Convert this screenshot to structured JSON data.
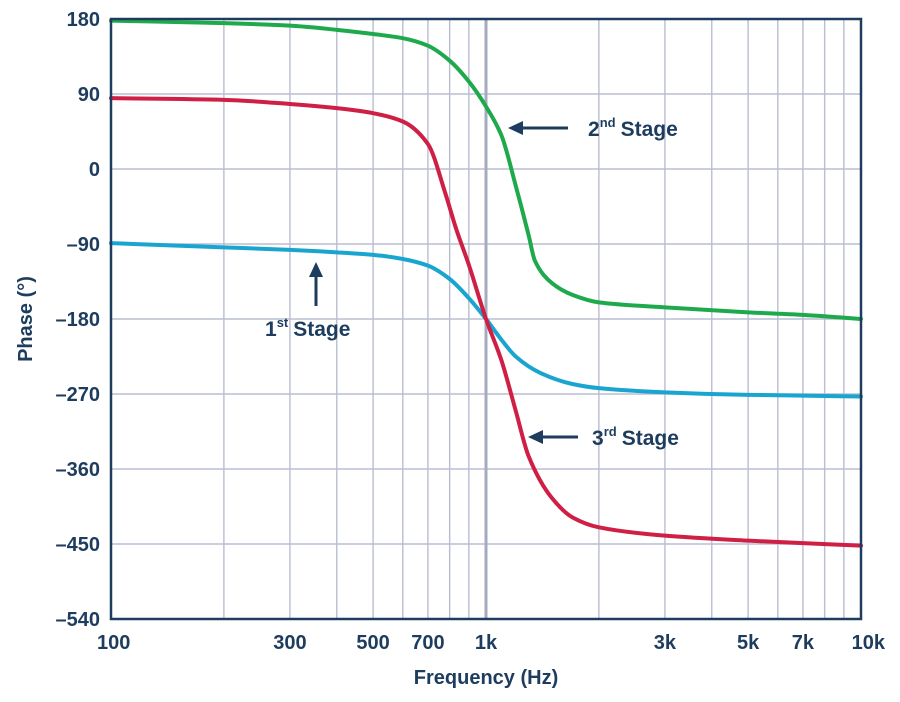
{
  "chart_data": {
    "type": "line",
    "title": "",
    "xlabel": "Frequency (Hz)",
    "ylabel": "Phase (°)",
    "x_scale": "log",
    "xlim": [
      100,
      10000
    ],
    "ylim": [
      -540,
      180
    ],
    "x_ticks": [
      100,
      300,
      500,
      700,
      1000,
      3000,
      5000,
      7000,
      10000
    ],
    "x_tick_labels": [
      "100",
      "300",
      "500",
      "700",
      "1k",
      "3k",
      "5k",
      "7k",
      "10k"
    ],
    "y_ticks": [
      180,
      90,
      0,
      -90,
      -180,
      -270,
      -360,
      -450,
      -540
    ],
    "y_tick_labels": [
      "180",
      "90",
      "0",
      "–90",
      "–180",
      "–270",
      "–360",
      "–450",
      "–540"
    ],
    "grid": true,
    "series": [
      {
        "name": "1st Stage",
        "color": "#1aa5d0",
        "points": [
          [
            100,
            -89
          ],
          [
            200,
            -94
          ],
          [
            300,
            -97
          ],
          [
            400,
            -100
          ],
          [
            500,
            -103
          ],
          [
            600,
            -108
          ],
          [
            700,
            -116
          ],
          [
            800,
            -132
          ],
          [
            900,
            -155
          ],
          [
            1000,
            -180
          ],
          [
            1100,
            -205
          ],
          [
            1200,
            -225
          ],
          [
            1400,
            -245
          ],
          [
            1700,
            -258
          ],
          [
            2000,
            -263
          ],
          [
            3000,
            -268
          ],
          [
            5000,
            -271
          ],
          [
            7000,
            -272
          ],
          [
            10000,
            -273
          ]
        ]
      },
      {
        "name": "2nd Stage",
        "color": "#1eaa4c",
        "points": [
          [
            100,
            178
          ],
          [
            200,
            175
          ],
          [
            300,
            172
          ],
          [
            400,
            167
          ],
          [
            500,
            162
          ],
          [
            600,
            157
          ],
          [
            700,
            148
          ],
          [
            800,
            130
          ],
          [
            900,
            105
          ],
          [
            1000,
            75
          ],
          [
            1100,
            40
          ],
          [
            1200,
            -20
          ],
          [
            1300,
            -80
          ],
          [
            1350,
            -110
          ],
          [
            1500,
            -137
          ],
          [
            1700,
            -151
          ],
          [
            2000,
            -160
          ],
          [
            3000,
            -166
          ],
          [
            5000,
            -172
          ],
          [
            7000,
            -175
          ],
          [
            10000,
            -180
          ]
        ]
      },
      {
        "name": "3rd Stage",
        "color": "#cf1f45",
        "points": [
          [
            100,
            85
          ],
          [
            200,
            83
          ],
          [
            300,
            78
          ],
          [
            400,
            73
          ],
          [
            500,
            67
          ],
          [
            600,
            57
          ],
          [
            700,
            30
          ],
          [
            780,
            -30
          ],
          [
            830,
            -70
          ],
          [
            900,
            -115
          ],
          [
            1000,
            -180
          ],
          [
            1100,
            -230
          ],
          [
            1200,
            -290
          ],
          [
            1300,
            -345
          ],
          [
            1500,
            -395
          ],
          [
            1700,
            -418
          ],
          [
            2000,
            -430
          ],
          [
            3000,
            -440
          ],
          [
            5000,
            -446
          ],
          [
            7000,
            -449
          ],
          [
            10000,
            -452
          ]
        ]
      }
    ],
    "annotations": [
      {
        "num": "1",
        "sup": "st",
        "text": "Stage"
      },
      {
        "num": "2",
        "sup": "nd",
        "text": "Stage"
      },
      {
        "num": "3",
        "sup": "rd",
        "text": "Stage"
      }
    ]
  }
}
